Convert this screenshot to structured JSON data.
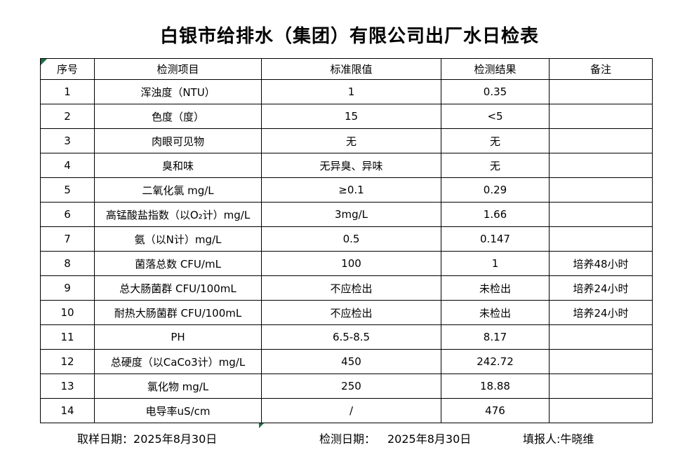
{
  "title": "白银市给排水（集团）有限公司出厂水日检表",
  "table": {
    "headers": [
      "序号",
      "检测项目",
      "标准限值",
      "检测结果",
      "备注"
    ],
    "rows": [
      [
        "1",
        "浑浊度（NTU）",
        "1",
        "0.35",
        ""
      ],
      [
        "2",
        "色度（度）",
        "15",
        "<5",
        ""
      ],
      [
        "3",
        "肉眼可见物",
        "无",
        "无",
        ""
      ],
      [
        "4",
        "臭和味",
        "无异臭、异味",
        "无",
        ""
      ],
      [
        "5",
        "二氧化氯 mg/L",
        "≥0.1",
        "0.29",
        ""
      ],
      [
        "6",
        "高锰酸盐指数（以O₂计）mg/L",
        "3mg/L",
        "1.66",
        ""
      ],
      [
        "7",
        "氨（以N计）mg/L",
        "0.5",
        "0.147",
        ""
      ],
      [
        "8",
        "菌落总数 CFU/mL",
        "100",
        "1",
        "培养48小时"
      ],
      [
        "9",
        "总大肠菌群 CFU/100mL",
        "不应检出",
        "未检出",
        "培养24小时"
      ],
      [
        "10",
        "耐热大肠菌群 CFU/100mL",
        "不应检出",
        "未检出",
        "培养24小时"
      ],
      [
        "11",
        "PH",
        "6.5-8.5",
        "8.17",
        ""
      ],
      [
        "12",
        "总硬度（以CaCo3计）mg/L",
        "450",
        "242.72",
        ""
      ],
      [
        "13",
        "氯化物 mg/L",
        "250",
        "18.88",
        ""
      ],
      [
        "14",
        "电导率uS/cm",
        "/",
        "476",
        ""
      ]
    ]
  },
  "footer": {
    "sampling_label": "取样日期：",
    "sampling_date": "2025年8月30日",
    "test_label": "检测日期：",
    "test_date": "2025年8月30日",
    "reporter_label": "填报人:",
    "reporter_name": "牛晓维"
  },
  "colors": {
    "text": "#000000",
    "border": "#000000",
    "background": "#ffffff",
    "excel_marker_green": "#1d7044"
  }
}
